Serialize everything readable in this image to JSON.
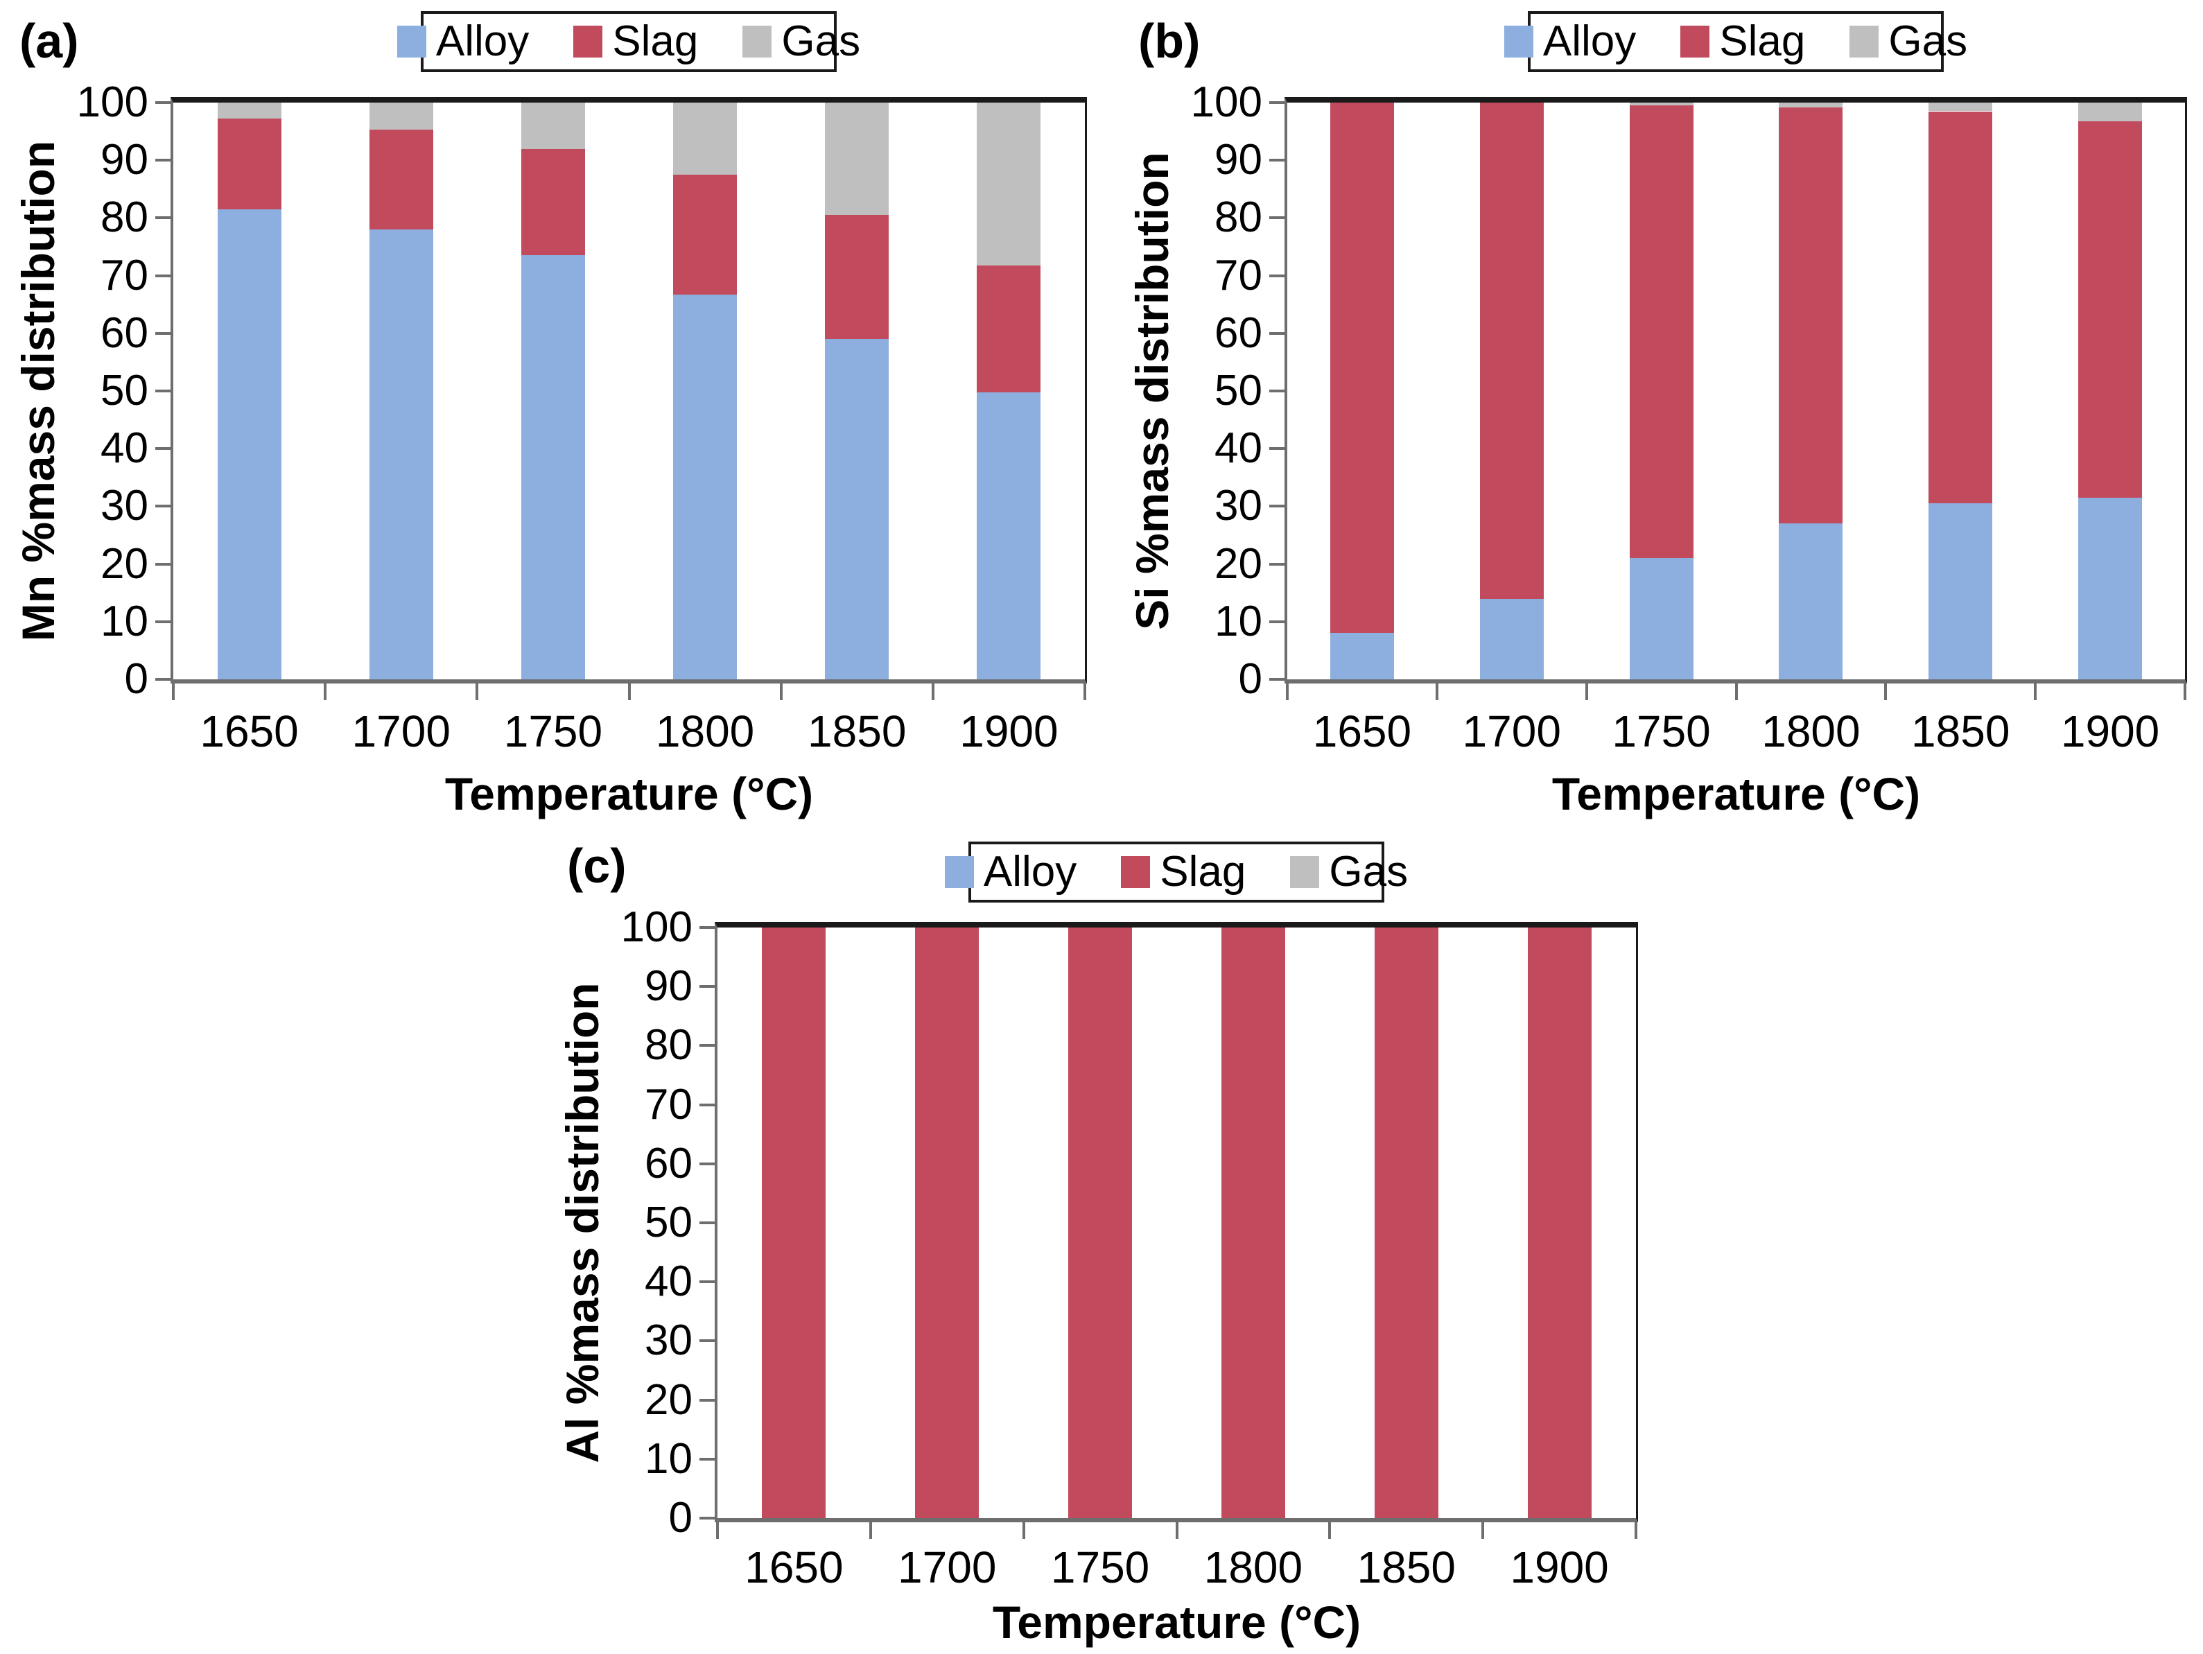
{
  "figure": {
    "colors": {
      "alloy": "#8DAFDF",
      "slag": "#C14B5D",
      "gas": "#BFBFBF"
    },
    "axis_line_color": "#6e6e6e",
    "border_color": "#1a1a1a",
    "background": "#ffffff"
  },
  "chart_data": [
    {
      "panel": "(a)",
      "type": "bar",
      "stacked": true,
      "title": "",
      "xlabel": "Temperature (°C)",
      "ylabel": "Mn %mass distribution",
      "ylim": [
        0,
        100
      ],
      "ytick_step": 10,
      "grid": false,
      "legend_position": "top-center",
      "categories": [
        "1650",
        "1700",
        "1750",
        "1800",
        "1850",
        "1900"
      ],
      "series": [
        {
          "name": "Alloy",
          "color_key": "alloy",
          "values": [
            81.5,
            78.0,
            73.5,
            66.7,
            59.0,
            49.8
          ]
        },
        {
          "name": "Slag",
          "color_key": "slag",
          "values": [
            15.7,
            17.3,
            18.5,
            20.8,
            21.5,
            22.0
          ]
        },
        {
          "name": "Gas",
          "color_key": "gas",
          "values": [
            2.8,
            4.7,
            8.0,
            12.5,
            19.5,
            28.2
          ]
        }
      ]
    },
    {
      "panel": "(b)",
      "type": "bar",
      "stacked": true,
      "title": "",
      "xlabel": "Temperature (°C)",
      "ylabel": "Si %mass distribution",
      "ylim": [
        0,
        100
      ],
      "ytick_step": 10,
      "grid": false,
      "legend_position": "top-center",
      "categories": [
        "1650",
        "1700",
        "1750",
        "1800",
        "1850",
        "1900"
      ],
      "series": [
        {
          "name": "Alloy",
          "color_key": "alloy",
          "values": [
            8.0,
            14.0,
            21.0,
            27.0,
            30.5,
            31.5
          ]
        },
        {
          "name": "Slag",
          "color_key": "slag",
          "values": [
            92.0,
            86.0,
            78.5,
            72.2,
            68.0,
            65.3
          ]
        },
        {
          "name": "Gas",
          "color_key": "gas",
          "values": [
            0.0,
            0.0,
            0.5,
            0.8,
            1.5,
            3.2
          ]
        }
      ]
    },
    {
      "panel": "(c)",
      "type": "bar",
      "stacked": true,
      "title": "",
      "xlabel": "Temperature (°C)",
      "ylabel": "Al %mass distribution",
      "ylim": [
        0,
        100
      ],
      "ytick_step": 10,
      "grid": false,
      "legend_position": "top-center",
      "categories": [
        "1650",
        "1700",
        "1750",
        "1800",
        "1850",
        "1900"
      ],
      "series": [
        {
          "name": "Alloy",
          "color_key": "alloy",
          "values": [
            0,
            0,
            0,
            0,
            0,
            0
          ]
        },
        {
          "name": "Slag",
          "color_key": "slag",
          "values": [
            100,
            100,
            100,
            100,
            100,
            100
          ]
        },
        {
          "name": "Gas",
          "color_key": "gas",
          "values": [
            0,
            0,
            0,
            0,
            0,
            0
          ]
        }
      ]
    }
  ]
}
